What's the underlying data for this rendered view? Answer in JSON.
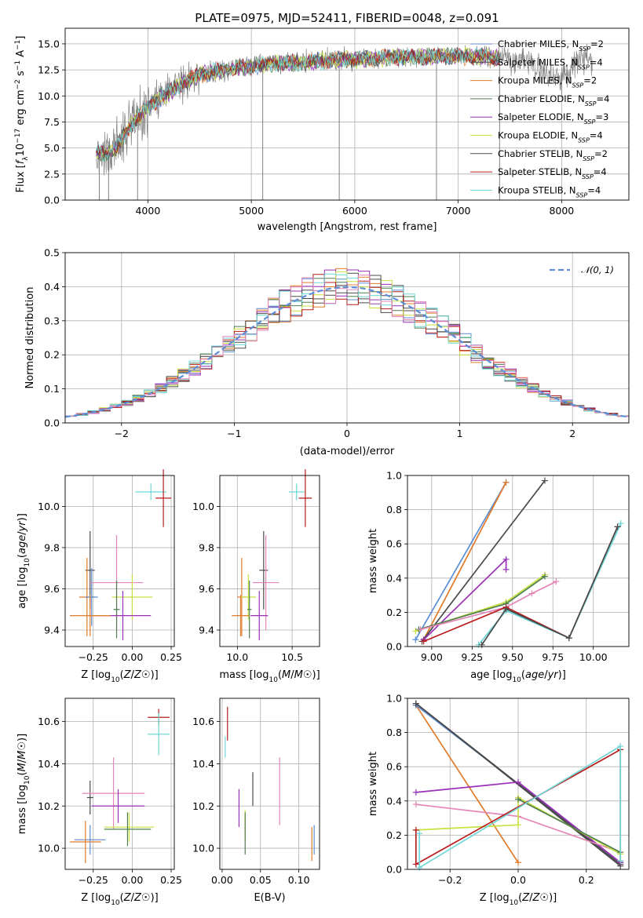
{
  "colors": {
    "Chabrier MILES": "#5b8ed6",
    "Salpeter MILES": "#4a4a4a",
    "Kroupa MILES": "#e07b2a",
    "Chabrier ELODIE": "#4f7f4f",
    "Salpeter ELODIE": "#9a30b8",
    "Kroupa ELODIE": "#c8e040",
    "Chabrier STELIB": "#4a4a4a",
    "Salpeter STELIB": "#b81c1c",
    "Kroupa STELIB": "#6fd6d6",
    "pink": "#e585b8",
    "data": "#808080",
    "grid": "#b0b0b0"
  },
  "chart_data": [
    {
      "id": "spectrum",
      "type": "line",
      "title": "PLATE=0975, MJD=52411, FIBERID=0048, z=0.091",
      "xlabel": "wavelength [Angstrom, rest frame]",
      "ylabel": "Flux [f_λ10^-17 erg cm^-2 s^-1 A^-1]",
      "ylabel_parts": [
        "Flux [",
        "f",
        "λ",
        "10",
        "−17",
        " erg cm",
        "−2",
        " s",
        "−1",
        " A",
        "−1",
        "]"
      ],
      "xlim": [
        3200,
        8650
      ],
      "ylim": [
        0,
        16.5
      ],
      "xticks": [
        4000,
        5000,
        6000,
        7000,
        8000
      ],
      "yticks": [
        0.0,
        2.5,
        5.0,
        7.5,
        10.0,
        12.5,
        15.0
      ],
      "ytick_labels": [
        "0.0",
        "2.5",
        "5.0",
        "7.5",
        "10.0",
        "12.5",
        "15.0"
      ],
      "data_range": [
        3500,
        8300
      ],
      "model_range": [
        3500,
        7400
      ],
      "legend": [
        {
          "name": "Chabrier MILES, N_SSP=2",
          "label": "Chabrier MILES, N",
          "sub": "SSP",
          "suffix": "=2",
          "color_key": "Chabrier MILES"
        },
        {
          "name": "Salpeter MILES, N_SSP=4",
          "label": "Salpeter MILES, N",
          "sub": "SSP",
          "suffix": "=4",
          "color_key": "Salpeter MILES"
        },
        {
          "name": "Kroupa MILES, N_SSP=2",
          "label": "Kroupa MILES, N",
          "sub": "SSP",
          "suffix": "=2",
          "color_key": "Kroupa MILES"
        },
        {
          "name": "Chabrier ELODIE, N_SSP=4",
          "label": "Chabrier ELODIE, N",
          "sub": "SSP",
          "suffix": "=4",
          "color_key": "Chabrier ELODIE"
        },
        {
          "name": "Salpeter ELODIE, N_SSP=3",
          "label": "Salpeter ELODIE, N",
          "sub": "SSP",
          "suffix": "=3",
          "color_key": "Salpeter ELODIE"
        },
        {
          "name": "Kroupa ELODIE, N_SSP=4",
          "label": "Kroupa ELODIE, N",
          "sub": "SSP",
          "suffix": "=4",
          "color_key": "Kroupa ELODIE"
        },
        {
          "name": "Chabrier STELIB, N_SSP=2",
          "label": "Chabrier STELIB, N",
          "sub": "SSP",
          "suffix": "=2",
          "color_key": "Chabrier STELIB"
        },
        {
          "name": "Salpeter STELIB, N_SSP=4",
          "label": "Salpeter STELIB, N",
          "sub": "SSP",
          "suffix": "=4",
          "color_key": "Salpeter STELIB"
        },
        {
          "name": "Kroupa STELIB, N_SSP=4",
          "label": "Kroupa STELIB, N",
          "sub": "SSP",
          "suffix": "=4",
          "color_key": "Kroupa STELIB"
        }
      ],
      "continuum": [
        [
          3500,
          4.6
        ],
        [
          3600,
          4.4
        ],
        [
          3700,
          5.0
        ],
        [
          3800,
          6.6
        ],
        [
          3900,
          8.0
        ],
        [
          4000,
          8.8
        ],
        [
          4100,
          9.7
        ],
        [
          4200,
          10.3
        ],
        [
          4300,
          10.9
        ],
        [
          4400,
          11.5
        ],
        [
          4500,
          12.0
        ],
        [
          4600,
          12.3
        ],
        [
          4800,
          12.6
        ],
        [
          5000,
          12.8
        ],
        [
          5200,
          13.1
        ],
        [
          5400,
          13.2
        ],
        [
          5600,
          13.3
        ],
        [
          5800,
          13.5
        ],
        [
          6000,
          13.5
        ],
        [
          6200,
          13.6
        ],
        [
          6400,
          13.7
        ],
        [
          6600,
          13.7
        ],
        [
          6800,
          13.8
        ],
        [
          7000,
          13.8
        ],
        [
          7200,
          13.8
        ],
        [
          7400,
          13.7
        ],
        [
          7600,
          13.4
        ],
        [
          7800,
          12.5
        ],
        [
          8000,
          11.5
        ],
        [
          8200,
          13.8
        ],
        [
          8300,
          13.2
        ]
      ],
      "dropouts": [
        [
          3530,
          0
        ],
        [
          3620,
          0
        ],
        [
          3900,
          0
        ],
        [
          5110,
          0
        ],
        [
          5850,
          0
        ],
        [
          6790,
          0
        ],
        [
          7400,
          0
        ]
      ]
    },
    {
      "id": "residuals",
      "type": "step",
      "xlabel": "(data-model)/error",
      "ylabel": "Normed distribution",
      "xlim": [
        -2.5,
        2.5
      ],
      "ylim": [
        0,
        0.5
      ],
      "xticks": [
        -2,
        -1,
        0,
        1,
        2
      ],
      "xtick_labels": [
        "−2",
        "−1",
        "0",
        "1",
        "2"
      ],
      "yticks": [
        0.0,
        0.1,
        0.2,
        0.3,
        0.4,
        0.5
      ],
      "ytick_labels": [
        "0.0",
        "0.1",
        "0.2",
        "0.3",
        "0.4",
        "0.5"
      ],
      "bin_width": 0.1,
      "legend": "𝒩(0, 1)",
      "reference_curve": {
        "name": "𝒩(0, 1)",
        "type": "gaussian",
        "mu": 0,
        "sigma": 1,
        "color": "#5b8ed6"
      }
    },
    {
      "id": "age_vs_Z",
      "type": "scatter",
      "xlabel": "Z [log10(Z/Z☉)]",
      "ylabel": "age  [log10(age/yr)]",
      "xlim": [
        -0.43,
        0.27
      ],
      "ylim": [
        9.32,
        10.15
      ],
      "xticks": [
        -0.25,
        0.0,
        0.25
      ],
      "xtick_labels": [
        "−0.25",
        "0.00",
        "0.25"
      ],
      "yticks": [
        9.4,
        9.6,
        9.8,
        10.0
      ],
      "ytick_labels": [
        "9.4",
        "9.6",
        "9.8",
        "10.0"
      ],
      "points": [
        {
          "model": "Kroupa STELIB",
          "x": 0.12,
          "y": 10.07,
          "xerr": 0.1,
          "yerr": 0.04
        },
        {
          "model": "Salpeter STELIB",
          "x": 0.2,
          "y": 10.04,
          "xerr": 0.05,
          "yerr": 0.14
        },
        {
          "model": "Salpeter MILES",
          "x": -0.27,
          "y": 9.69,
          "xerr": 0.03,
          "yerr": 0.19
        },
        {
          "model": "Kroupa MILES",
          "x": -0.29,
          "y": 9.56,
          "xerr": 0.05,
          "yerr": 0.19
        },
        {
          "model": "Chabrier MILES",
          "x": -0.26,
          "y": 9.56,
          "xerr": 0.04,
          "yerr": 0.14
        },
        {
          "model": "pink",
          "x": -0.1,
          "y": 9.63,
          "xerr": 0.17,
          "yerr": 0.23
        },
        {
          "model": "Kroupa ELODIE",
          "x": 0.0,
          "y": 9.56,
          "xerr": 0.13,
          "yerr": 0.11
        },
        {
          "model": "Chabrier ELODIE",
          "x": -0.1,
          "y": 9.5,
          "xerr": 0.02,
          "yerr": 0.14
        },
        {
          "model": "Salpeter ELODIE",
          "x": -0.06,
          "y": 9.47,
          "xerr": 0.18,
          "yerr": 0.12
        },
        {
          "model": "Kroupa MILES",
          "x": -0.27,
          "y": 9.47,
          "xerr": 0.13,
          "yerr": 0.1
        }
      ]
    },
    {
      "id": "age_vs_mass",
      "type": "scatter",
      "xlabel": "mass [log10(M/M☉)]",
      "ylabel": "",
      "xlim": [
        9.84,
        10.75
      ],
      "ylim": [
        9.32,
        10.15
      ],
      "xticks": [
        10.0,
        10.5
      ],
      "xtick_labels": [
        "10.0",
        "10.5"
      ],
      "yticks": [
        9.4,
        9.6,
        9.8,
        10.0
      ],
      "ytick_labels": [
        "9.4",
        "9.6",
        "9.8",
        "10.0"
      ],
      "points": [
        {
          "model": "Kroupa STELIB",
          "x": 10.54,
          "y": 10.07,
          "xerr": 0.07,
          "yerr": 0.04
        },
        {
          "model": "Salpeter STELIB",
          "x": 10.62,
          "y": 10.04,
          "xerr": 0.06,
          "yerr": 0.14
        },
        {
          "model": "Salpeter MILES",
          "x": 10.24,
          "y": 9.69,
          "xerr": 0.04,
          "yerr": 0.19
        },
        {
          "model": "pink",
          "x": 10.26,
          "y": 9.63,
          "xerr": 0.12,
          "yerr": 0.23
        },
        {
          "model": "Kroupa MILES",
          "x": 10.04,
          "y": 9.56,
          "xerr": 0.04,
          "yerr": 0.19
        },
        {
          "model": "Kroupa ELODIE",
          "x": 10.1,
          "y": 9.56,
          "xerr": 0.07,
          "yerr": 0.11
        },
        {
          "model": "Chabrier ELODIE",
          "x": 10.11,
          "y": 9.5,
          "xerr": 0.02,
          "yerr": 0.14
        },
        {
          "model": "Salpeter ELODIE",
          "x": 10.2,
          "y": 9.47,
          "xerr": 0.08,
          "yerr": 0.12
        },
        {
          "model": "Kroupa MILES",
          "x": 10.03,
          "y": 9.47,
          "xerr": 0.08,
          "yerr": 0.1
        }
      ]
    },
    {
      "id": "weight_vs_age",
      "type": "line",
      "xlabel": "age  [log10(age/yr)]",
      "ylabel": "mass weight",
      "xlim": [
        8.85,
        10.22
      ],
      "ylim": [
        0,
        1
      ],
      "xticks": [
        9.0,
        9.25,
        9.5,
        9.75,
        10.0
      ],
      "xtick_labels": [
        "9.00",
        "9.25",
        "9.50",
        "9.75",
        "10.00"
      ],
      "yticks": [
        0.0,
        0.2,
        0.4,
        0.6,
        0.8,
        1.0
      ],
      "ytick_labels": [
        "0.0",
        "0.2",
        "0.4",
        "0.6",
        "0.8",
        "1.0"
      ],
      "series": [
        {
          "model": "Chabrier MILES",
          "x": [
            8.9,
            9.46
          ],
          "y": [
            0.04,
            0.96
          ]
        },
        {
          "model": "Kroupa MILES",
          "x": [
            8.95,
            9.46
          ],
          "y": [
            0.04,
            0.96
          ]
        },
        {
          "model": "Salpeter MILES",
          "x": [
            8.94,
            9.7
          ],
          "y": [
            0.03,
            0.97
          ]
        },
        {
          "model": "Salpeter ELODIE",
          "x": [
            8.95,
            9.46,
            9.46
          ],
          "y": [
            0.04,
            0.51,
            0.45
          ]
        },
        {
          "model": "Kroupa ELODIE",
          "x": [
            8.9,
            9.46,
            9.7
          ],
          "y": [
            0.09,
            0.26,
            0.42
          ]
        },
        {
          "model": "Chabrier ELODIE",
          "x": [
            8.92,
            9.46,
            9.7
          ],
          "y": [
            0.1,
            0.25,
            0.41
          ]
        },
        {
          "model": "pink",
          "x": [
            8.93,
            9.46,
            9.62,
            9.77
          ],
          "y": [
            0.1,
            0.23,
            0.31,
            0.38
          ]
        },
        {
          "model": "Salpeter STELIB",
          "x": [
            8.95,
            9.46,
            9.85,
            10.15
          ],
          "y": [
            0.03,
            0.23,
            0.05,
            0.7
          ]
        },
        {
          "model": "Kroupa STELIB",
          "x": [
            9.29,
            9.46,
            9.85,
            10.17
          ],
          "y": [
            0.01,
            0.21,
            0.05,
            0.72
          ]
        },
        {
          "model": "Chabrier STELIB",
          "x": [
            9.31,
            9.46,
            9.85,
            10.15
          ],
          "y": [
            0.01,
            0.22,
            0.05,
            0.7
          ]
        }
      ]
    },
    {
      "id": "mass_vs_Z",
      "type": "scatter",
      "xlabel": "Z [log10(Z/Z☉)]",
      "ylabel": "mass [log10(M/M☉)]",
      "xlim": [
        -0.43,
        0.27
      ],
      "ylim": [
        9.9,
        10.71
      ],
      "xticks": [
        -0.25,
        0.0,
        0.25
      ],
      "xtick_labels": [
        "−0.25",
        "0.00",
        "0.25"
      ],
      "yticks": [
        10.0,
        10.2,
        10.4,
        10.6
      ],
      "ytick_labels": [
        "10.0",
        "10.2",
        "10.4",
        "10.6"
      ],
      "points": [
        {
          "model": "Salpeter STELIB",
          "x": 0.17,
          "y": 10.62,
          "xerr": 0.07,
          "yerr": 0.04
        },
        {
          "model": "Kroupa STELIB",
          "x": 0.17,
          "y": 10.54,
          "xerr": 0.07,
          "yerr": 0.1
        },
        {
          "model": "Salpeter MILES",
          "x": -0.27,
          "y": 10.24,
          "xerr": 0.02,
          "yerr": 0.08
        },
        {
          "model": "pink",
          "x": -0.12,
          "y": 10.26,
          "xerr": 0.2,
          "yerr": 0.17
        },
        {
          "model": "Salpeter ELODIE",
          "x": -0.09,
          "y": 10.2,
          "xerr": 0.17,
          "yerr": 0.08
        },
        {
          "model": "Kroupa ELODIE",
          "x": -0.02,
          "y": 10.1,
          "xerr": 0.16,
          "yerr": 0.07
        },
        {
          "model": "Chabrier ELODIE",
          "x": -0.03,
          "y": 10.09,
          "xerr": 0.15,
          "yerr": 0.08
        },
        {
          "model": "Chabrier MILES",
          "x": -0.27,
          "y": 10.04,
          "xerr": 0.1,
          "yerr": 0.07
        },
        {
          "model": "Kroupa MILES",
          "x": -0.3,
          "y": 10.03,
          "xerr": 0.1,
          "yerr": 0.1
        }
      ]
    },
    {
      "id": "mass_vs_ebv",
      "type": "scatter",
      "xlabel": "E(B-V)",
      "ylabel": "",
      "xlim": [
        -0.003,
        0.127
      ],
      "ylim": [
        9.9,
        10.71
      ],
      "xticks": [
        0.0,
        0.05,
        0.1
      ],
      "xtick_labels": [
        "0.00",
        "0.05",
        "0.10"
      ],
      "yticks": [
        10.0,
        10.2,
        10.4,
        10.6
      ],
      "ytick_labels": [
        "10.0",
        "10.2",
        "10.4",
        "10.6"
      ],
      "points": [
        {
          "model": "Salpeter STELIB",
          "x": 0.007,
          "y": 10.59,
          "xerr": 0,
          "yerr": 0.08
        },
        {
          "model": "Kroupa STELIB",
          "x": 0.004,
          "y": 10.48,
          "xerr": 0,
          "yerr": 0.05
        },
        {
          "model": "Salpeter MILES",
          "x": 0.04,
          "y": 10.28,
          "xerr": 0,
          "yerr": 0.08
        },
        {
          "model": "pink",
          "x": 0.075,
          "y": 10.27,
          "xerr": 0,
          "yerr": 0.16
        },
        {
          "model": "Salpeter ELODIE",
          "x": 0.022,
          "y": 10.19,
          "xerr": 0,
          "yerr": 0.09
        },
        {
          "model": "Kroupa ELODIE",
          "x": 0.03,
          "y": 10.11,
          "xerr": 0,
          "yerr": 0.07
        },
        {
          "model": "Chabrier ELODIE",
          "x": 0.03,
          "y": 10.07,
          "xerr": 0,
          "yerr": 0.1
        },
        {
          "model": "Chabrier MILES",
          "x": 0.12,
          "y": 10.04,
          "xerr": 0,
          "yerr": 0.07
        },
        {
          "model": "Kroupa MILES",
          "x": 0.117,
          "y": 10.02,
          "xerr": 0,
          "yerr": 0.08
        }
      ]
    },
    {
      "id": "weight_vs_Z",
      "type": "line",
      "xlabel": "Z [log10(Z/Z☉)]",
      "ylabel": "mass weight",
      "xlim": [
        -0.325,
        0.325
      ],
      "ylim": [
        0,
        1
      ],
      "xticks": [
        -0.2,
        0.0,
        0.2
      ],
      "xtick_labels": [
        "−0.2",
        "0.0",
        "0.2"
      ],
      "yticks": [
        0.0,
        0.2,
        0.4,
        0.6,
        0.8,
        1.0
      ],
      "ytick_labels": [
        "0.0",
        "0.2",
        "0.4",
        "0.6",
        "0.8",
        "1.0"
      ],
      "series": [
        {
          "model": "Kroupa MILES",
          "x": [
            -0.3,
            0.0
          ],
          "y": [
            0.96,
            0.04
          ]
        },
        {
          "model": "Chabrier MILES",
          "x": [
            -0.3,
            0.3
          ],
          "y": [
            0.96,
            0.04
          ]
        },
        {
          "model": "Salpeter MILES",
          "x": [
            -0.3,
            0.3
          ],
          "y": [
            0.97,
            0.03
          ]
        },
        {
          "model": "Chabrier STELIB",
          "x": [
            -0.3,
            0.3
          ],
          "y": [
            0.97,
            0.02
          ]
        },
        {
          "model": "Salpeter ELODIE",
          "x": [
            -0.3,
            0.0,
            0.3
          ],
          "y": [
            0.45,
            0.51,
            0.04
          ]
        },
        {
          "model": "pink",
          "x": [
            -0.3,
            0.0,
            0.3
          ],
          "y": [
            0.38,
            0.31,
            0.1
          ]
        },
        {
          "model": "Kroupa ELODIE",
          "x": [
            -0.3,
            0.0,
            0.0,
            0.3
          ],
          "y": [
            0.23,
            0.26,
            0.42,
            0.09
          ]
        },
        {
          "model": "Chabrier ELODIE",
          "x": [
            0.0,
            0.3
          ],
          "y": [
            0.41,
            0.1
          ]
        },
        {
          "model": "Salpeter STELIB",
          "x": [
            -0.3,
            -0.3,
            0.3,
            0.3
          ],
          "y": [
            0.23,
            0.03,
            0.7,
            0.05
          ]
        },
        {
          "model": "Kroupa STELIB",
          "x": [
            -0.29,
            -0.29,
            0.3,
            0.3
          ],
          "y": [
            0.21,
            0.01,
            0.72,
            0.05
          ]
        }
      ]
    }
  ]
}
